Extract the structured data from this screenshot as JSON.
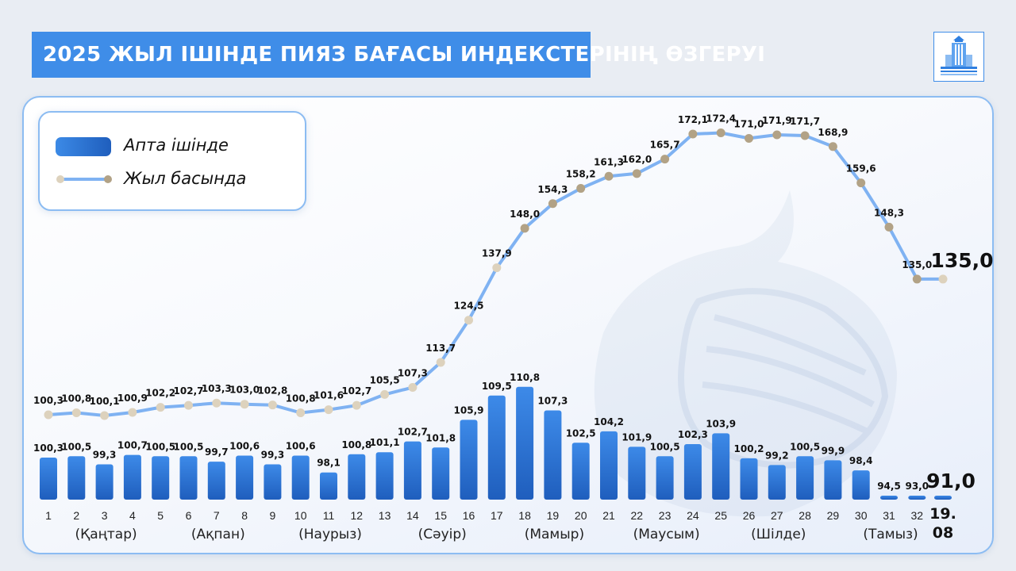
{
  "title": "2025 ЖЫЛ ІШІНДЕ ПИЯЗ БАҒАСЫ ИНДЕКСТЕРІНІҢ ӨЗГЕРУІ",
  "logo_icon": "building-emblem-icon",
  "colors": {
    "accent": "#3f8de8",
    "bar": "#2a6fd1",
    "line": "#7fb2f2",
    "marker": "#b2a286",
    "marker_light": "#ddd2bd"
  },
  "legend": {
    "weekly": "Апта ішінде",
    "ytd": "Жыл басында"
  },
  "chart_data": {
    "type": "bar+line",
    "categories": [
      "1",
      "2",
      "3",
      "4",
      "5",
      "6",
      "7",
      "8",
      "9",
      "10",
      "11",
      "12",
      "13",
      "14",
      "15",
      "16",
      "17",
      "18",
      "19",
      "20",
      "21",
      "22",
      "23",
      "24",
      "25",
      "26",
      "27",
      "28",
      "29",
      "30",
      "31",
      "32",
      "19.08"
    ],
    "series": [
      {
        "name": "Апта ішінде",
        "type": "bar",
        "values": [
          100.3,
          100.5,
          99.3,
          100.7,
          100.5,
          100.5,
          99.7,
          100.6,
          99.3,
          100.6,
          98.1,
          100.8,
          101.1,
          102.7,
          101.8,
          105.9,
          109.5,
          110.8,
          107.3,
          102.5,
          104.2,
          101.9,
          100.5,
          102.3,
          103.9,
          100.2,
          99.2,
          100.5,
          99.9,
          98.4,
          94.5,
          93.0,
          91.0
        ],
        "labels": [
          "100,3",
          "100,5",
          "99,3",
          "100,7",
          "100,5",
          "100,5",
          "99,7",
          "100,6",
          "99,3",
          "100,6",
          "98,1",
          "100,8",
          "101,1",
          "102,7",
          "101,8",
          "105,9",
          "109,5",
          "110,8",
          "107,3",
          "102,5",
          "104,2",
          "101,9",
          "100,5",
          "102,3",
          "103,9",
          "100,2",
          "99,2",
          "100,5",
          "99,9",
          "98,4",
          "94,5",
          "93,0",
          "91,0"
        ]
      },
      {
        "name": "Жыл басында",
        "type": "line",
        "values": [
          100.3,
          100.8,
          100.1,
          100.9,
          102.2,
          102.7,
          103.3,
          103.0,
          102.8,
          100.8,
          101.6,
          102.7,
          105.5,
          107.3,
          113.7,
          124.5,
          137.9,
          148.0,
          154.3,
          158.2,
          161.3,
          162.0,
          165.7,
          172.1,
          172.4,
          171.0,
          171.9,
          171.7,
          168.9,
          159.6,
          148.3,
          135.0,
          135.0
        ],
        "labels": [
          "100,3",
          "100,8",
          "100,1",
          "100,9",
          "102,2",
          "102,7",
          "103,3",
          "103,0",
          "102,8",
          "100,8",
          "101,6",
          "102,7",
          "105,5",
          "107,3",
          "113,7",
          "124,5",
          "137,9",
          "148,0",
          "154,3",
          "158,2",
          "161,3",
          "162,0",
          "165,7",
          "172,1",
          "172,4",
          "171,0",
          "171,9",
          "171,7",
          "168,9",
          "159,6",
          "148,3",
          "135,0",
          "135,0"
        ]
      }
    ],
    "months": [
      {
        "label": "(Қаңтар)",
        "at": "3"
      },
      {
        "label": "(Ақпан)",
        "at": "7"
      },
      {
        "label": "(Наурыз)",
        "at": "11"
      },
      {
        "label": "(Сәуір)",
        "at": "15"
      },
      {
        "label": "(Мамыр)",
        "at": "19"
      },
      {
        "label": "(Маусым)",
        "at": "23"
      },
      {
        "label": "(Шілде)",
        "at": "27"
      },
      {
        "label": "(Тамыз)",
        "at": "31"
      }
    ]
  }
}
